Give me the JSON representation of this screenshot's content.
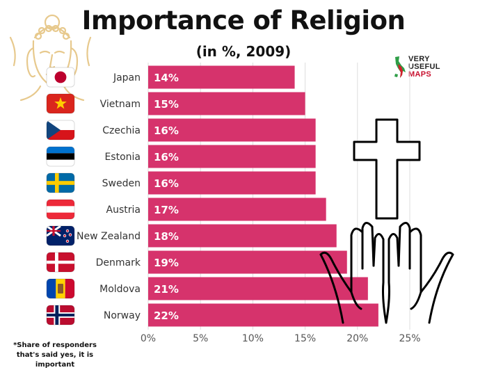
{
  "title": "Importance of Religion",
  "subtitle": "(in %, 2009)",
  "footnote": "*Share of responders that's said yes, it is important",
  "logo": {
    "line1": "VERY",
    "line2": "USEFUL",
    "line3": "MAPS"
  },
  "colors": {
    "bar": "#d6336c",
    "grid": "#dddddd",
    "text": "#111111"
  },
  "chart_data": {
    "type": "bar",
    "orientation": "horizontal",
    "title": "Importance of Religion",
    "subtitle": "(in %, 2009)",
    "categories": [
      "Japan",
      "Vietnam",
      "Czechia",
      "Estonia",
      "Sweden",
      "Austria",
      "New Zealand",
      "Denmark",
      "Moldova",
      "Norway"
    ],
    "values": [
      14,
      15,
      16,
      16,
      16,
      17,
      18,
      19,
      21,
      22
    ],
    "value_labels": [
      "14%",
      "15%",
      "16%",
      "16%",
      "16%",
      "17%",
      "18%",
      "19%",
      "21%",
      "22%"
    ],
    "xlim": [
      0,
      25
    ],
    "xticks": [
      0,
      5,
      10,
      15,
      20,
      25
    ],
    "xtick_labels": [
      "0%",
      "5%",
      "10%",
      "15%",
      "20%",
      "25%"
    ],
    "flags": [
      "japan",
      "vietnam",
      "czechia",
      "estonia",
      "sweden",
      "austria",
      "new-zealand",
      "denmark",
      "moldova",
      "norway"
    ],
    "grid": true
  }
}
